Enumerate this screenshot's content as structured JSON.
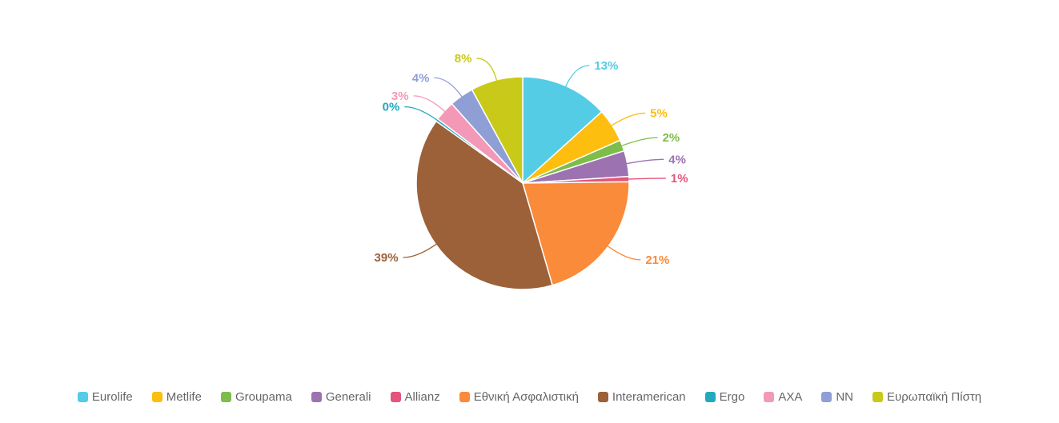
{
  "chart_data": {
    "type": "pie",
    "title": "",
    "start_angle": "top",
    "direction": "clockwise",
    "legend_position": "bottom",
    "slices": [
      {
        "name": "Eurolife",
        "value": 13.3,
        "label": "13%",
        "color": "#55cce6"
      },
      {
        "name": "Metlife",
        "value": 5.1,
        "label": "5%",
        "color": "#fdbe10"
      },
      {
        "name": "Groupama",
        "value": 1.7,
        "label": "2%",
        "color": "#7ebd4a"
      },
      {
        "name": "Generali",
        "value": 3.9,
        "label": "4%",
        "color": "#9c72b1"
      },
      {
        "name": "Allianz",
        "value": 0.8,
        "label": "1%",
        "color": "#e3557a"
      },
      {
        "name": "Εθνική Ασφαλιστική",
        "value": 20.7,
        "label": "21%",
        "color": "#f98b3a"
      },
      {
        "name": "Interamerican",
        "value": 39.4,
        "label": "39%",
        "color": "#9c6139"
      },
      {
        "name": "Ergo",
        "value": 0.4,
        "label": "0%",
        "color": "#23a9be"
      },
      {
        "name": "AXA",
        "value": 3.1,
        "label": "3%",
        "color": "#f498b8"
      },
      {
        "name": "NN",
        "value": 3.7,
        "label": "4%",
        "color": "#8f9fd5"
      },
      {
        "name": "Ευρωπαϊκή Πίστη",
        "value": 7.9,
        "label": "8%",
        "color": "#c8c918"
      }
    ]
  }
}
